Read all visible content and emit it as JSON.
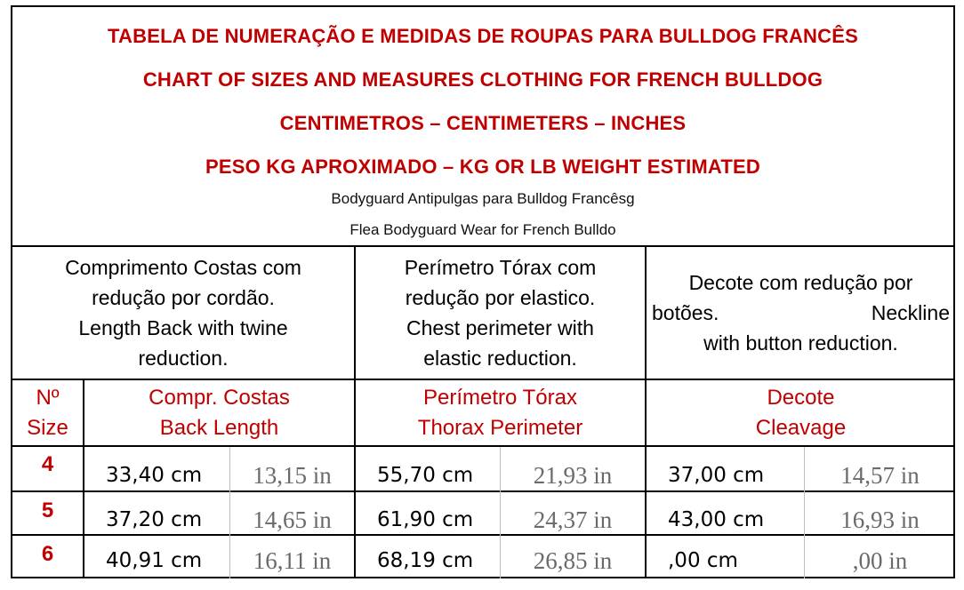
{
  "titles": {
    "line1": "TABELA DE NUMERAÇÃO E MEDIDAS DE ROUPAS PARA BULLDOG FRANCÊS",
    "line2": "CHART OF SIZES AND MEASURES CLOTHING FOR  FRENCH BULLDOG",
    "line3": "CENTIMETROS – CENTIMETERS – INCHES",
    "line4": "PESO KG APROXIMADO – KG OR LB WEIGHT ESTIMATED",
    "sub1": "Bodyguard Antipulgas para Bulldog Francêsg",
    "sub2": "Flea Bodyguard Wear for French Bulldo"
  },
  "descriptions": {
    "back": [
      "Comprimento Costas com",
      "redução por cordão.",
      "Length Back with twine",
      "reduction."
    ],
    "chest": [
      "Perímetro Tórax com",
      "redução por elastico.",
      "Chest perimeter with",
      "elastic reduction."
    ],
    "neck": {
      "line1": "Decote com redução por",
      "line2a": "botões.",
      "line2b": "Neckline",
      "line3": "with button reduction."
    }
  },
  "column_headers": {
    "size": [
      "Nº",
      "Size"
    ],
    "back": [
      "Compr. Costas",
      "Back Length"
    ],
    "chest": [
      "Perímetro Tórax",
      "Thorax Perimeter"
    ],
    "neck": [
      "Decote",
      "Cleavage"
    ]
  },
  "rows": [
    {
      "size": "4",
      "back_cm": "33,40 cm",
      "back_in": "13,15 in",
      "chest_cm": "55,70 cm",
      "chest_in": "21,93 in",
      "neck_cm": "37,00 cm",
      "neck_in": "14,57 in"
    },
    {
      "size": "5",
      "back_cm": "37,20 cm",
      "back_in": "14,65 in",
      "chest_cm": "61,90 cm",
      "chest_in": "24,37 in",
      "neck_cm": "43,00 cm",
      "neck_in": "16,93 in"
    },
    {
      "size": "6",
      "back_cm": "40,91 cm",
      "back_in": "16,11 in",
      "chest_cm": "68,19 cm",
      "chest_in": "26,85 in",
      "neck_cm": ",00 cm",
      "neck_in": ",00 in"
    }
  ],
  "colors": {
    "title_red": "#c00000",
    "inch_gray": "#6a6a6a"
  }
}
